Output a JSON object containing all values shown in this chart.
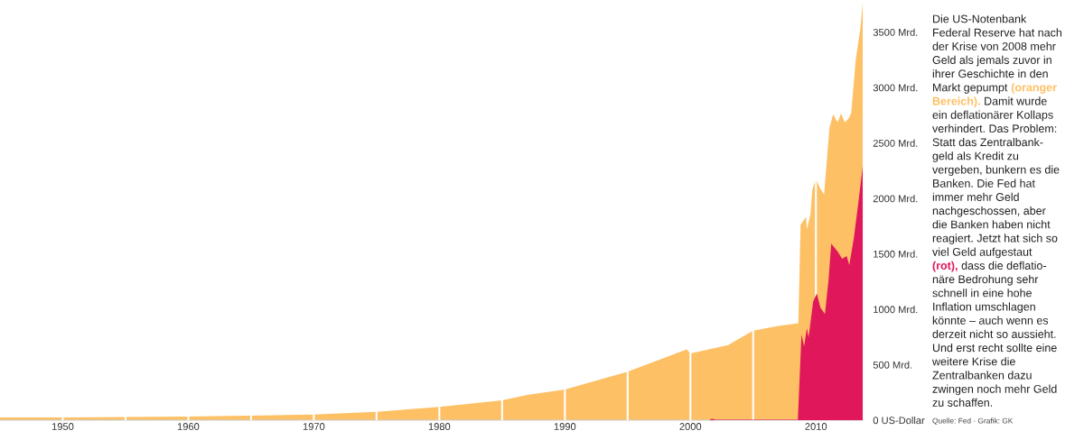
{
  "chart_data": {
    "type": "area",
    "series": [
      {
        "color": "#fdc065",
        "x": [
          1945,
          1950,
          1955,
          1960,
          1965,
          1970,
          1975,
          1980,
          1985,
          1987,
          1990,
          1995,
          1999.7,
          2000,
          2003,
          2005,
          2007,
          2008.6,
          2008.78,
          2009.21,
          2009.28,
          2009.57,
          2009.71,
          2010.0,
          2010.29,
          2010.65,
          2011.08,
          2011.37,
          2011.73,
          2012.01,
          2012.3,
          2012.59,
          2012.81,
          2013.17,
          2013.53,
          2013.74
        ],
        "values": [
          25,
          25,
          28,
          33,
          42,
          52,
          76,
          120,
          180,
          228,
          276,
          437,
          638,
          603,
          678,
          807,
          850,
          874,
          1762,
          1835,
          1722,
          1859,
          2076,
          2180,
          2100,
          2036,
          2639,
          2760,
          2687,
          2768,
          2687,
          2719,
          2768,
          3250,
          3524,
          3780
        ]
      },
      {
        "color": "#e0175a",
        "x": [
          2001.5,
          2001.7,
          2002,
          2008.56,
          2008.85,
          2009.06,
          2009.28,
          2009.42,
          2009.78,
          2010.07,
          2010.36,
          2010.72,
          2011.01,
          2011.22,
          2011.44,
          2011.73,
          2012.09,
          2012.45,
          2012.66,
          2013.02,
          2013.38,
          2013.74
        ],
        "values": [
          0,
          12,
          5,
          5,
          772,
          668,
          829,
          748,
          1070,
          1143,
          1014,
          957,
          1271,
          1593,
          1561,
          1521,
          1456,
          1480,
          1400,
          1641,
          1963,
          2300
        ]
      }
    ],
    "xlim": [
      1945,
      2013.74
    ],
    "xticks": [
      {
        "value": 1950,
        "label": "1950"
      },
      {
        "value": 1955,
        "label": null
      },
      {
        "value": 1960,
        "label": "1960"
      },
      {
        "value": 1965,
        "label": null
      },
      {
        "value": 1970,
        "label": "1970"
      },
      {
        "value": 1975,
        "label": null
      },
      {
        "value": 1980,
        "label": "1980"
      },
      {
        "value": 1985,
        "label": null
      },
      {
        "value": 1990,
        "label": "1990"
      },
      {
        "value": 1995,
        "label": null
      },
      {
        "value": 2000,
        "label": "2000"
      },
      {
        "value": 2005,
        "label": null
      },
      {
        "value": 2010,
        "label": "2010"
      }
    ],
    "ylim": [
      0,
      3790
    ],
    "yticks": [
      {
        "value": 0,
        "label": "0 US-Dollar"
      },
      {
        "value": 500,
        "label": "500 Mrd."
      },
      {
        "value": 1000,
        "label": "1000 Mrd."
      },
      {
        "value": 1500,
        "label": "1500 Mrd."
      },
      {
        "value": 2000,
        "label": "2000 Mrd."
      },
      {
        "value": 2500,
        "label": "2500 Mrd."
      },
      {
        "value": 3000,
        "label": "3000 Mrd."
      },
      {
        "value": 3500,
        "label": "3500 Mrd."
      }
    ],
    "grid": "x",
    "annotations": [
      "Die US-Notenbank\nFederal Reserve hat nach\nder Krise von 2008 mehr\nGeld als jemals zuvor in\nihrer Geschichte in den\nMarkt gepumpt ",
      "(oranger\nBereich).",
      " Damit wurde\nein deflationärer Kollaps\nverhindert. Das Problem:\nStatt das Zentralbank-\ngeld als Kredit zu\nvergeben, bunkern es die\nBanken. Die Fed hat\nimmer mehr Geld\nnachgeschossen, aber\ndie Banken haben nicht\nreagiert. Jetzt hat sich so\nviel Geld aufgestaut\n",
      "(rot),",
      " dass die deflatio-\nnäre Bedrohung sehr\nschnell in eine hohe\nInflation umschlagen\nkönnte – auch wenn es\nderzeit nicht so aussieht.\nUnd erst recht sollte eine\nweitere Krise die\nZentralbanken dazu\nzwingen noch mehr Geld\nzu schaffen.",
      "Quelle: Fed · Grafik: GK"
    ]
  }
}
